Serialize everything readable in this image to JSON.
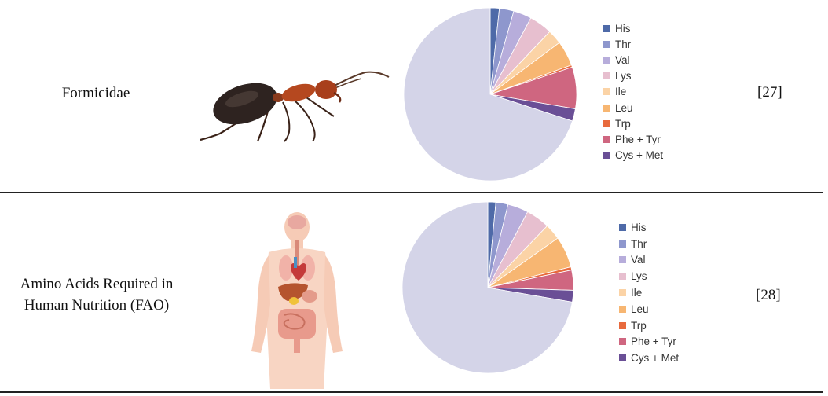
{
  "rows": [
    {
      "species": "Formicidae",
      "ref": "[27]"
    },
    {
      "species": "Amino Acids Required in Human Nutrition (FAO)",
      "species_lines": [
        "Amino Acids Required in",
        "Human Nutrition (FAO)"
      ],
      "ref": "[28]"
    }
  ],
  "colors": [
    "#4e6aa8",
    "#8e97cd",
    "#b7addb",
    "#e7bfcf",
    "#fbd3a6",
    "#f7b672",
    "#e86a3d",
    "#cf6680",
    "#6a4f96",
    "#d4d4e8"
  ],
  "chart_data": [
    {
      "type": "pie",
      "legend_position": "right",
      "categories": [
        "His",
        "Thr",
        "Val",
        "Lys",
        "Ile",
        "Leu",
        "Trp",
        "Phe + Tyr",
        "Cys + Met"
      ],
      "values": [
        1.7,
        2.7,
        3.4,
        4.3,
        2.7,
        4.7,
        0.4,
        7.8,
        2.3
      ],
      "remainder": 70.0
    },
    {
      "type": "pie",
      "legend_position": "right",
      "categories": [
        "His",
        "Thr",
        "Val",
        "Lys",
        "Ile",
        "Leu",
        "Trp",
        "Phe + Tyr",
        "Cys + Met"
      ],
      "values": [
        1.5,
        2.3,
        3.9,
        4.5,
        3.0,
        5.9,
        0.6,
        3.8,
        2.2
      ],
      "remainder": 72.3
    }
  ]
}
